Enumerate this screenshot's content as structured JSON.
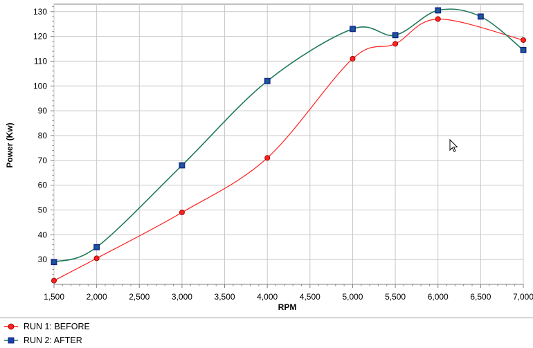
{
  "chart_data": {
    "type": "line",
    "xlabel": "RPM",
    "ylabel": "Power (Kw)",
    "xlim": [
      1500,
      7000
    ],
    "ylim": [
      20,
      133
    ],
    "x_ticks": [
      1500,
      2000,
      2500,
      3000,
      3500,
      4000,
      4500,
      5000,
      5500,
      6000,
      6500,
      7000
    ],
    "x_tick_labels": [
      "1,500",
      "2,000",
      "2,500",
      "3,000",
      "3,500",
      "4,000",
      "4,500",
      "5,000",
      "5,500",
      "6,000",
      "6,500",
      "7,000"
    ],
    "y_ticks": [
      30,
      40,
      50,
      60,
      70,
      80,
      90,
      100,
      110,
      120,
      130
    ],
    "y_tick_labels": [
      "30",
      "40",
      "50",
      "60",
      "70",
      "80",
      "90",
      "100",
      "110",
      "120",
      "130"
    ],
    "grid": true,
    "legend_position": "bottom-left",
    "series": [
      {
        "name": "RUN 1: BEFORE",
        "color": "#ff2020",
        "marker": "circle",
        "x": [
          1500,
          2000,
          3000,
          4000,
          5000,
          5500,
          6000,
          7000
        ],
        "y": [
          21.5,
          30.5,
          49,
          71,
          111,
          117,
          127,
          118.5
        ]
      },
      {
        "name": "RUN 2: AFTER",
        "color": "#1f7a5a",
        "marker": "square",
        "x": [
          1500,
          2000,
          3000,
          4000,
          5000,
          5500,
          6000,
          6500,
          7000
        ],
        "y": [
          29,
          35,
          68,
          102,
          123,
          120.5,
          130.5,
          128,
          114.5
        ]
      }
    ]
  }
}
